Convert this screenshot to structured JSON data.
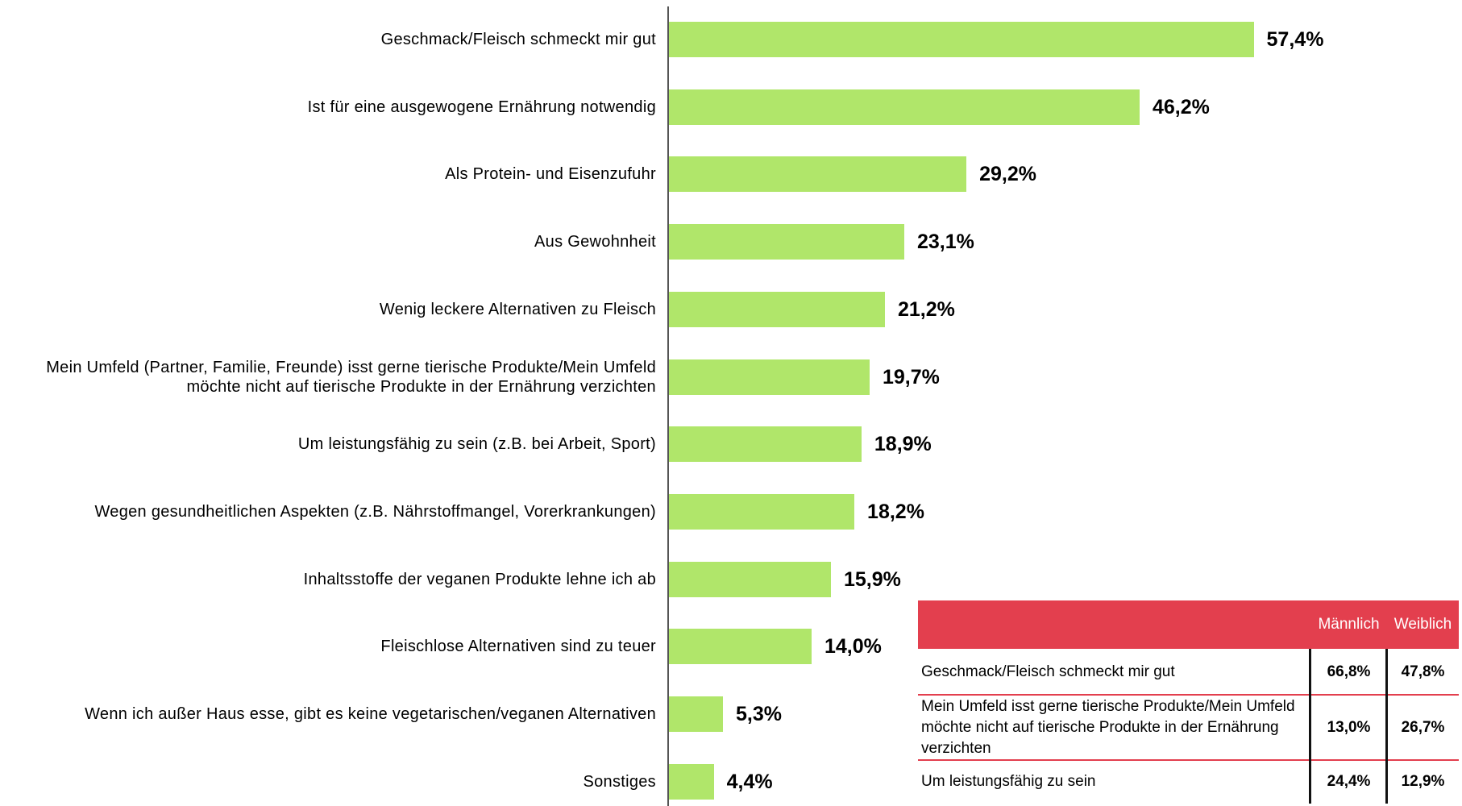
{
  "chart_data": {
    "type": "bar",
    "categories": [
      "Geschmack/Fleisch schmeckt mir gut",
      "Ist für eine ausgewogene Ernährung notwendig",
      "Als Protein- und Eisenzufuhr",
      "Aus Gewohnheit",
      "Wenig leckere Alternativen zu Fleisch",
      "Mein Umfeld (Partner, Familie, Freunde) isst gerne tierische Produkte/Mein Umfeld möchte nicht auf tierische Produkte in der Ernährung verzichten",
      "Um leistungsfähig zu sein (z.B. bei Arbeit, Sport)",
      "Wegen gesundheitlichen Aspekten (z.B. Nährstoffmangel, Vorerkrankungen)",
      "Inhaltsstoffe der veganen Produkte lehne ich ab",
      "Fleischlose Alternativen sind zu teuer",
      "Wenn ich außer Haus esse, gibt es keine vegetarischen/veganen Alternativen",
      "Sonstiges"
    ],
    "values": [
      57.4,
      46.2,
      29.2,
      23.1,
      21.2,
      19.7,
      18.9,
      18.2,
      15.9,
      14.0,
      5.3,
      4.4
    ],
    "value_labels": [
      "57,4%",
      "46,2%",
      "29,2%",
      "23,1%",
      "21,2%",
      "19,7%",
      "18,9%",
      "18,2%",
      "15,9%",
      "14,0%",
      "5,3%",
      "4,4%"
    ],
    "color": "#b0e66a"
  },
  "table": {
    "columns": [
      "Männlich",
      "Weiblich"
    ],
    "rows": [
      {
        "label": "Geschmack/Fleisch schmeckt mir gut",
        "values": [
          "66,8%",
          "47,8%"
        ]
      },
      {
        "label": "Mein Umfeld isst gerne tierische Produkte/Mein Umfeld möchte nicht auf tierische Produkte in der Ernährung verzichten",
        "values": [
          "13,0%",
          "26,7%"
        ]
      },
      {
        "label": "Um leistungsfähig zu sein",
        "values": [
          "24,4%",
          "12,9%"
        ]
      }
    ]
  }
}
